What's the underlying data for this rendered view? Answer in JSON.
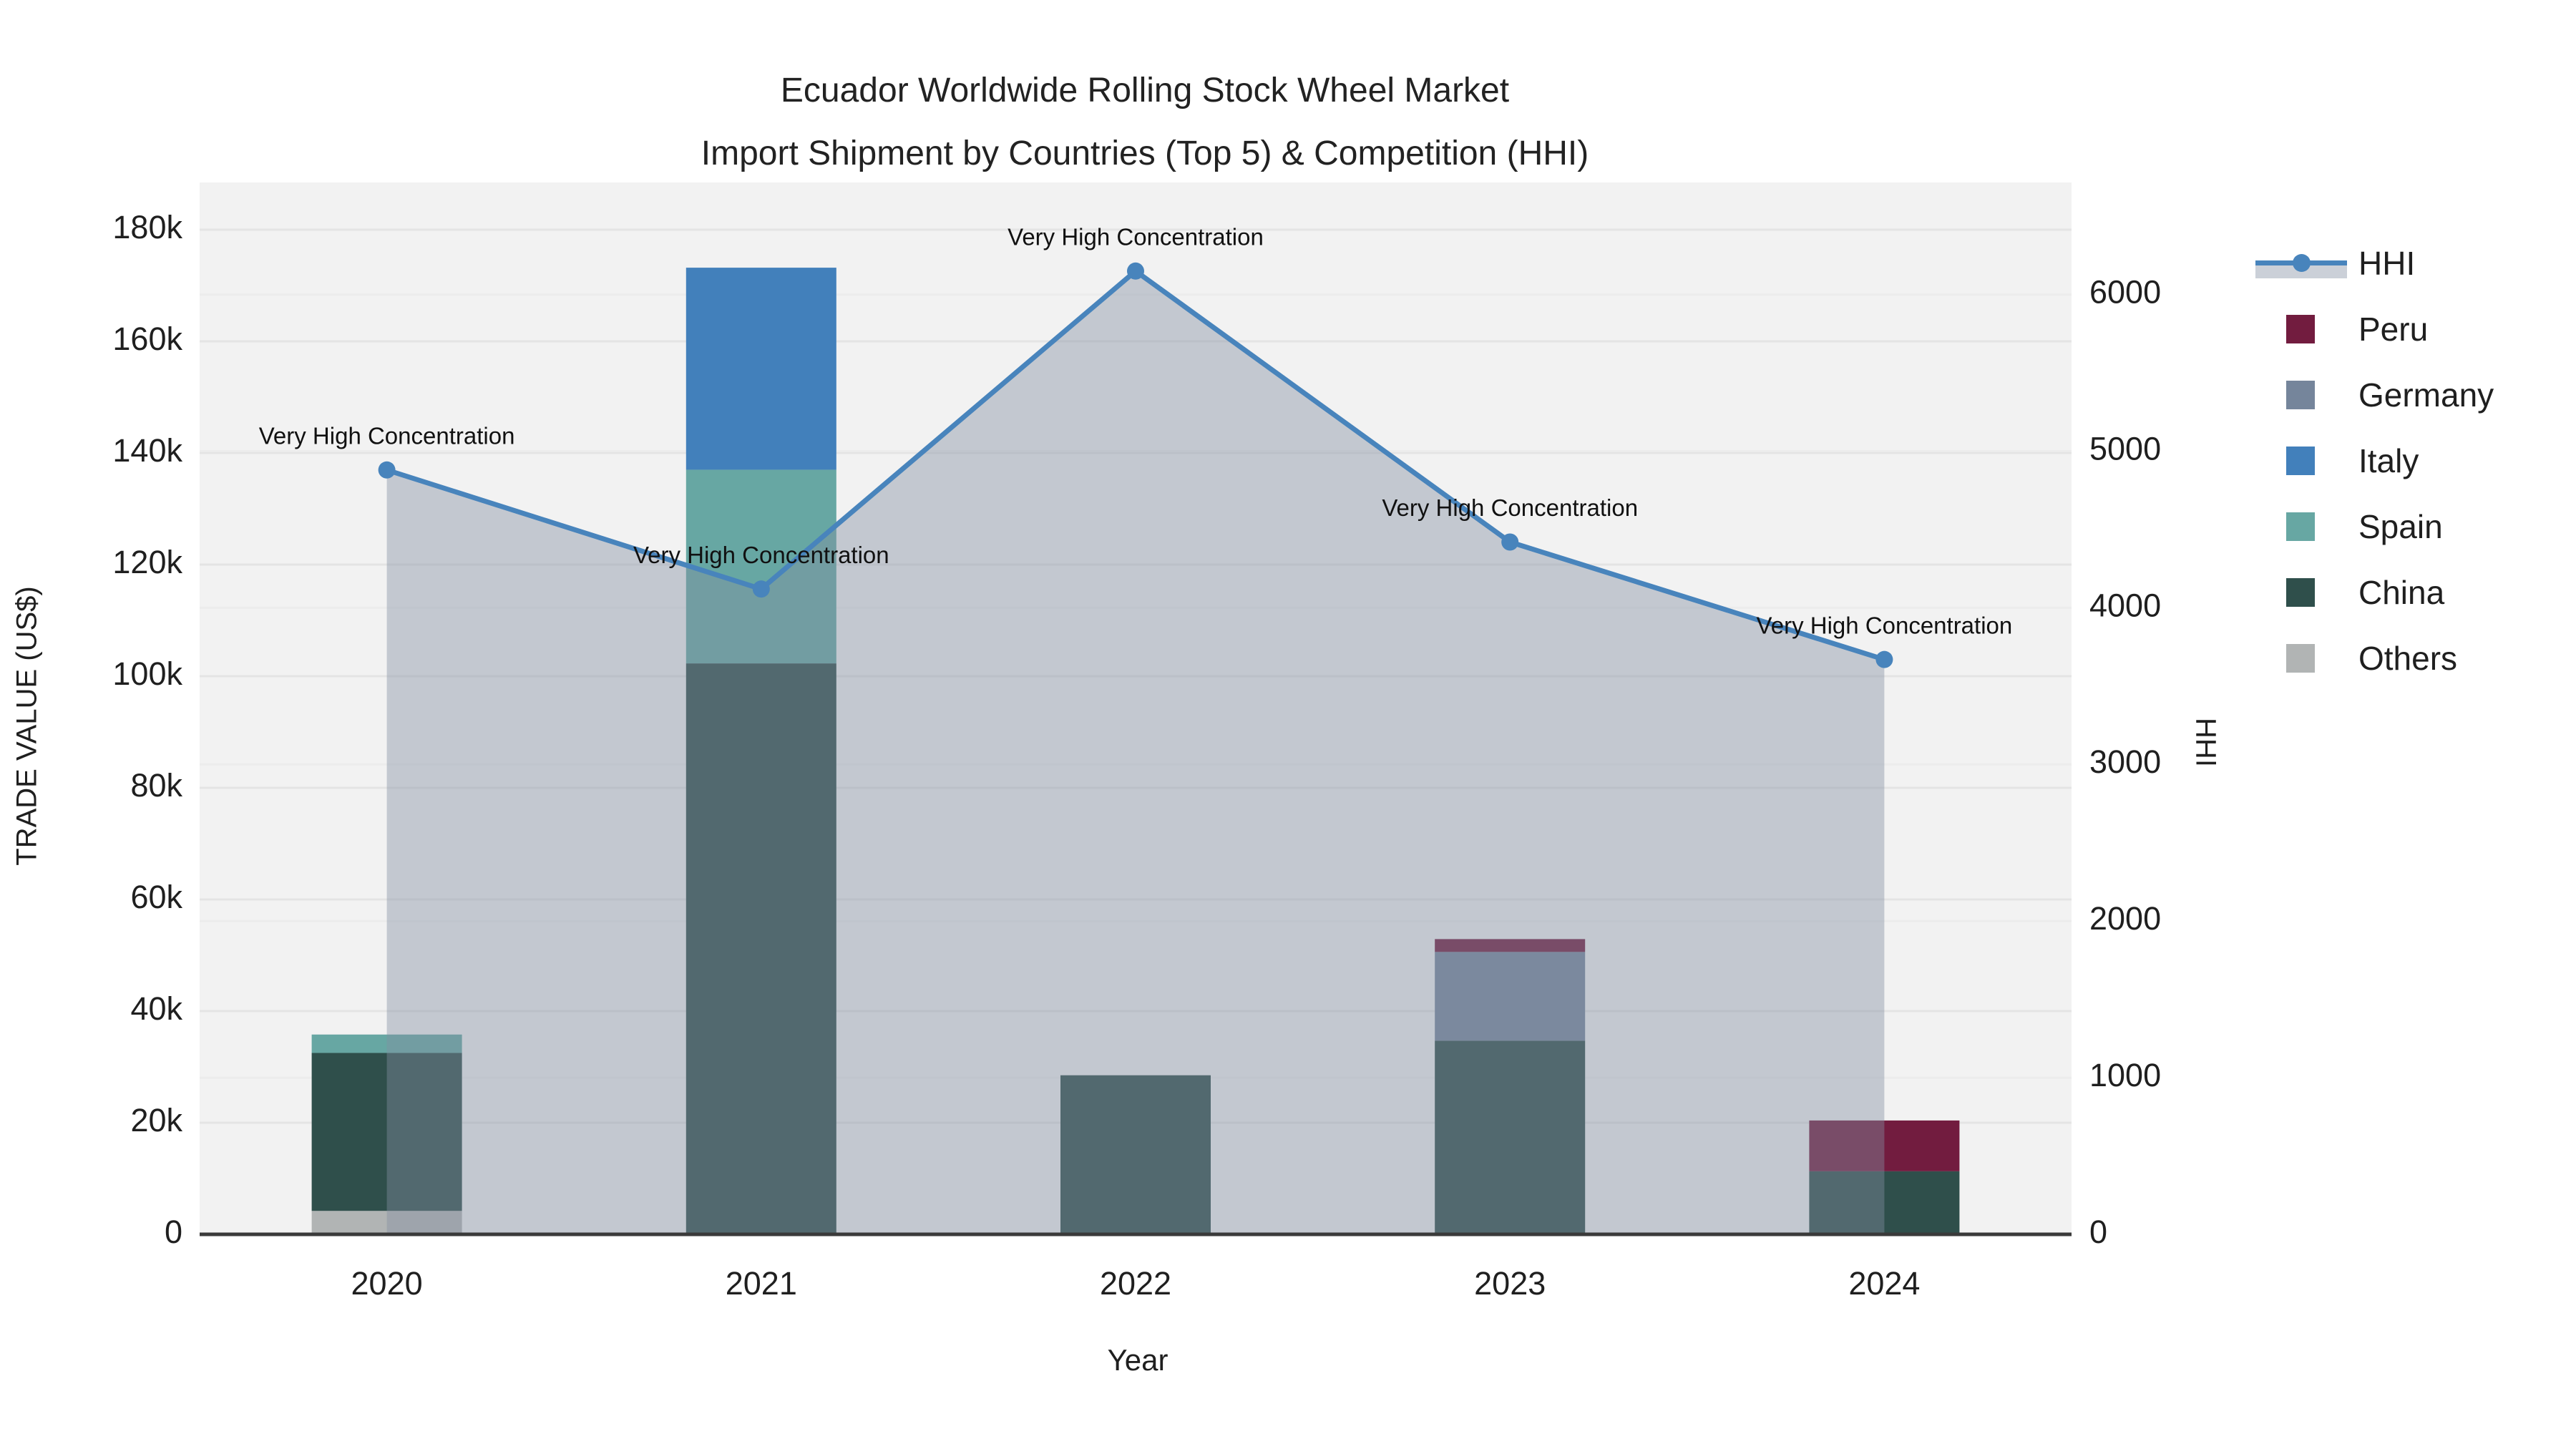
{
  "title": {
    "line1": "Ecuador Worldwide Rolling Stock Wheel Market",
    "line2": "Import Shipment by Countries (Top 5) & Competition (HHI)"
  },
  "axes": {
    "x": {
      "title": "Year",
      "categories": [
        "2020",
        "2021",
        "2022",
        "2023",
        "2024"
      ]
    },
    "y_left": {
      "title": "TRADE VALUE (US$)",
      "tick_labels": [
        "0",
        "20k",
        "40k",
        "60k",
        "80k",
        "100k",
        "120k",
        "140k",
        "160k",
        "180k"
      ],
      "tick_values": [
        0,
        20000,
        40000,
        60000,
        80000,
        100000,
        120000,
        140000,
        160000,
        180000
      ],
      "range": [
        0,
        182700
      ]
    },
    "y_right": {
      "title": "HHI",
      "tick_labels": [
        "0",
        "1000",
        "2000",
        "3000",
        "4000",
        "5000",
        "6000"
      ],
      "tick_values": [
        0,
        1000,
        2000,
        3000,
        4000,
        5000,
        6000
      ],
      "range": [
        0,
        6510
      ]
    }
  },
  "legend": [
    {
      "label": "HHI",
      "type": "line",
      "color": "#4884bc"
    },
    {
      "label": "Peru",
      "type": "swatch",
      "color": "#721c3f"
    },
    {
      "label": "Germany",
      "type": "swatch",
      "color": "#75859b"
    },
    {
      "label": "Italy",
      "type": "swatch",
      "color": "#4280bb"
    },
    {
      "label": "Spain",
      "type": "swatch",
      "color": "#67a7a3"
    },
    {
      "label": "China",
      "type": "swatch",
      "color": "#2f4f4b"
    },
    {
      "label": "Others",
      "type": "swatch",
      "color": "#b1b4b4"
    }
  ],
  "annotations": {
    "text": "Very High Concentration",
    "per_point": [
      "Very High Concentration",
      "Very High Concentration",
      "Very High Concentration",
      "Very High Concentration",
      "Very High Concentration"
    ]
  },
  "chart_data": {
    "type": "bar+line",
    "title": "Ecuador Worldwide Rolling Stock Wheel Market — Import Shipment by Countries (Top 5) & Competition (HHI)",
    "xlabel": "Year",
    "ylabel_left": "TRADE VALUE (US$)",
    "ylabel_right": "HHI",
    "categories": [
      "2020",
      "2021",
      "2022",
      "2023",
      "2024"
    ],
    "stacked_bars_bottom_to_top": [
      {
        "name": "Others",
        "color": "#b1b4b4",
        "values": [
          4200,
          0,
          0,
          0,
          0
        ]
      },
      {
        "name": "China",
        "color": "#2f4f4b",
        "values": [
          28300,
          102300,
          28500,
          34700,
          11300
        ]
      },
      {
        "name": "Spain",
        "color": "#67a7a3",
        "values": [
          3300,
          34700,
          0,
          0,
          0
        ]
      },
      {
        "name": "Italy",
        "color": "#4280bb",
        "values": [
          0,
          36200,
          0,
          0,
          0
        ]
      },
      {
        "name": "Germany",
        "color": "#75859b",
        "values": [
          0,
          0,
          0,
          15900,
          0
        ]
      },
      {
        "name": "Peru",
        "color": "#721c3f",
        "values": [
          0,
          0,
          0,
          2300,
          9100
        ]
      }
    ],
    "bar_totals": [
      35800,
      173200,
      28500,
      52900,
      20400
    ],
    "line_series": {
      "name": "HHI",
      "axis": "right",
      "values": [
        4880,
        4120,
        6150,
        4420,
        3670
      ],
      "color": "#4884bc",
      "area_fill": "rgba(130,143,163,0.42)",
      "markers": true
    },
    "ylim_left": [
      0,
      182700
    ],
    "ylim_right": [
      0,
      6510
    ],
    "grid": true,
    "legend_position": "right",
    "plot_bg": "#f2f2f2",
    "grid_color": "#e4e4e4",
    "grid_color_right": "#ececec",
    "axis_line_color": "#3a3a3a",
    "text_color": "#1f1f1f"
  }
}
